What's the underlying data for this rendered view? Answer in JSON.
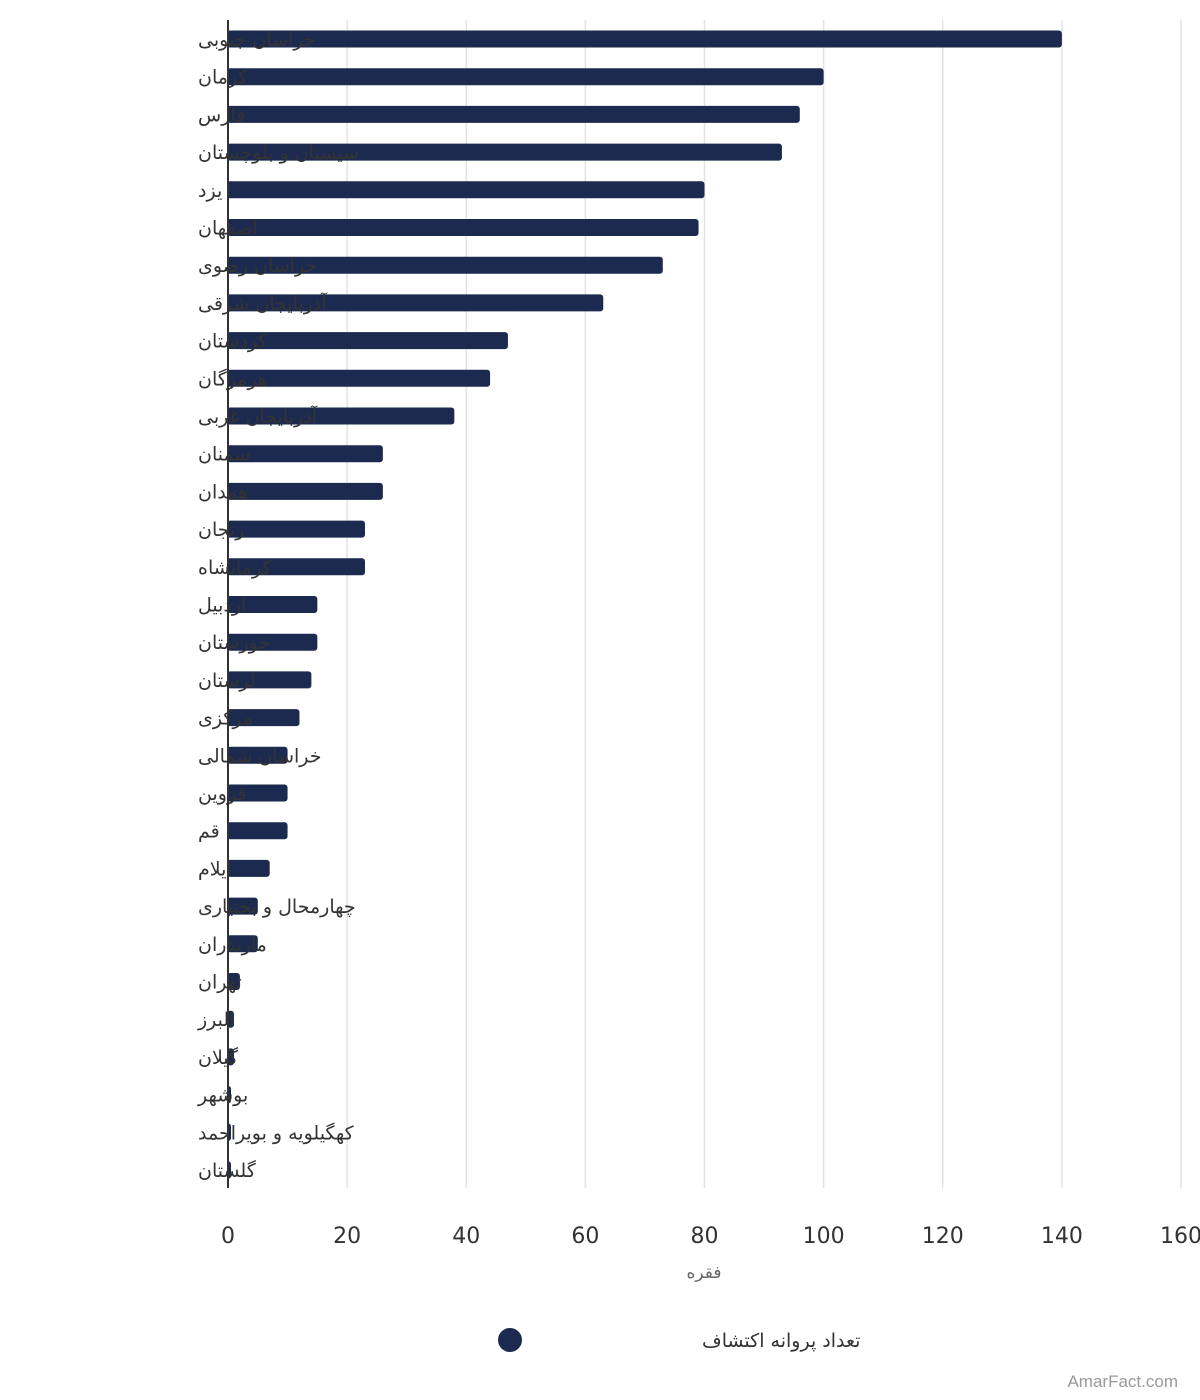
{
  "chart_data": {
    "type": "bar",
    "orientation": "horizontal",
    "categories": [
      "خراسان جنوبی",
      "کرمان",
      "فارس",
      "سیستان و بلوچستان",
      "یزد",
      "اصفهان",
      "خراسان رضوی",
      "آذربایجان شرقی",
      "کردستان",
      "هرمزگان",
      "آذربایجان غربی",
      "سمنان",
      "همدان",
      "زنجان",
      "کرمانشاه",
      "اردبیل",
      "خوزستان",
      "لرستان",
      "مرکزی",
      "خراسان شمالی",
      "قزوین",
      "قم",
      "ایلام",
      "چهارمحال و بختیاری",
      "مازندران",
      "تهران",
      "البرز",
      "گیلان",
      "بوشهر",
      "کهگیلویه و بویراحمد",
      "گلستان"
    ],
    "series": [
      {
        "name": "تعداد پروانه اکتشاف",
        "color": "#1b2a4e",
        "values": [
          140,
          100,
          96,
          93,
          80,
          79,
          73,
          63,
          47,
          44,
          38,
          26,
          26,
          23,
          23,
          15,
          15,
          14,
          12,
          10,
          10,
          10,
          7,
          5,
          5,
          2,
          1,
          1,
          0,
          0,
          0
        ]
      }
    ],
    "xlabel": "فقره",
    "ylabel": "",
    "xlim": [
      0,
      160
    ],
    "ticks": [
      0,
      20,
      40,
      60,
      80,
      100,
      120,
      140,
      160
    ],
    "grid": true,
    "legend_position": "bottom-center"
  },
  "watermark": "AmarFact.com"
}
